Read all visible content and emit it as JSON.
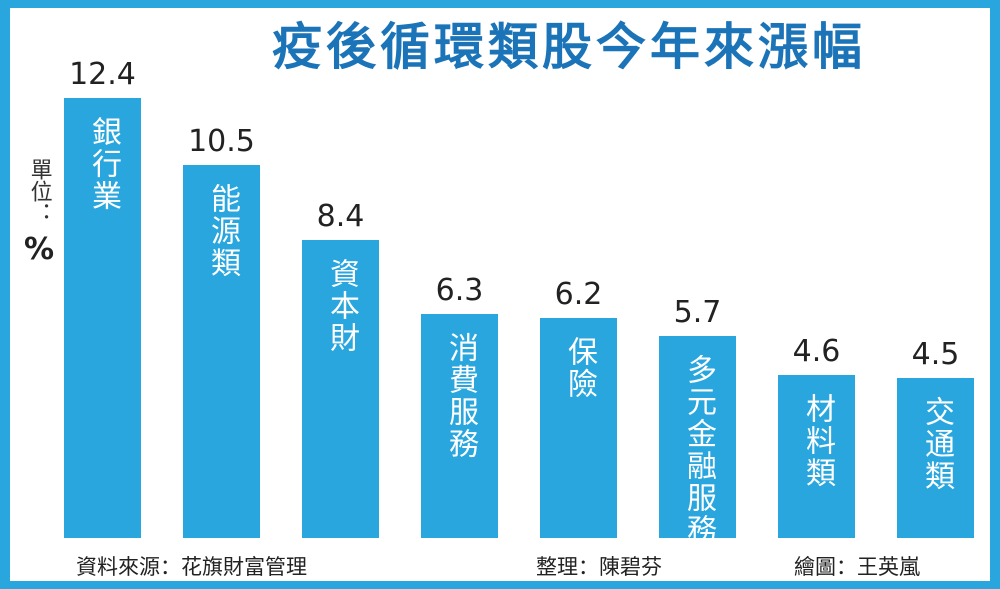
{
  "chart_data": {
    "type": "bar",
    "title": "疫後循環類股今年來漲幅",
    "unit_label": "單位：",
    "unit_symbol": "%",
    "categories": [
      "銀行業",
      "能源類",
      "資本財",
      "消費服務",
      "保險",
      "多元金融服務",
      "材料類",
      "交通類"
    ],
    "values": [
      12.4,
      10.5,
      8.4,
      6.3,
      6.2,
      5.7,
      4.6,
      4.5
    ],
    "value_labels": [
      "12.4",
      "10.5",
      "8.4",
      "6.3",
      "6.2",
      "5.7",
      "4.6",
      "4.5"
    ],
    "bar_color": "#29a6de",
    "ylim": [
      0,
      12.4
    ]
  },
  "credits": {
    "source": "資料來源：花旗財富管理",
    "editor": "整理：陳碧芬",
    "illustrator": "繪圖：王英嵐"
  },
  "colors": {
    "title": "#1b73b8",
    "frame": "#29a6de"
  }
}
